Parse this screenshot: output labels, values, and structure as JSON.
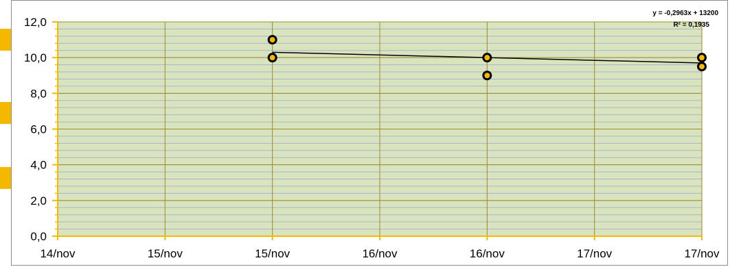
{
  "chart_data": {
    "type": "scatter",
    "title": "",
    "xlabel": "",
    "ylabel": "",
    "x_ticks": [
      "14/nov",
      "15/nov",
      "15/nov",
      "16/nov",
      "16/nov",
      "17/nov",
      "17/nov"
    ],
    "y_ticks": [
      "0,0",
      "2,0",
      "4,0",
      "6,0",
      "8,0",
      "10,0",
      "12,0"
    ],
    "xlim_days": [
      0,
      3
    ],
    "ylim": [
      0,
      12
    ],
    "grid": true,
    "points": [
      {
        "x": "15/nov",
        "y": 11.0
      },
      {
        "x": "15/nov",
        "y": 10.0
      },
      {
        "x": "16/nov",
        "y": 10.0
      },
      {
        "x": "16/nov",
        "y": 9.0
      },
      {
        "x": "17/nov",
        "y": 10.0
      },
      {
        "x": "17/nov",
        "y": 9.5
      }
    ],
    "trendline": {
      "type": "linear",
      "equation": "y = -0,2963x + 13200",
      "r_squared": "R² = 0,1935",
      "start": {
        "x": "15/nov",
        "y": 10.3
      },
      "end": {
        "x": "17/nov",
        "y": 9.7
      }
    },
    "colors": {
      "plot_background": "#d9e4bf",
      "minor_grid": "#a9b3cc",
      "major_grid": "#9a8a2a",
      "axis": "#f5b800",
      "marker_fill": "#f5b800",
      "marker_edge": "#000000",
      "trendline": "#000000"
    }
  }
}
